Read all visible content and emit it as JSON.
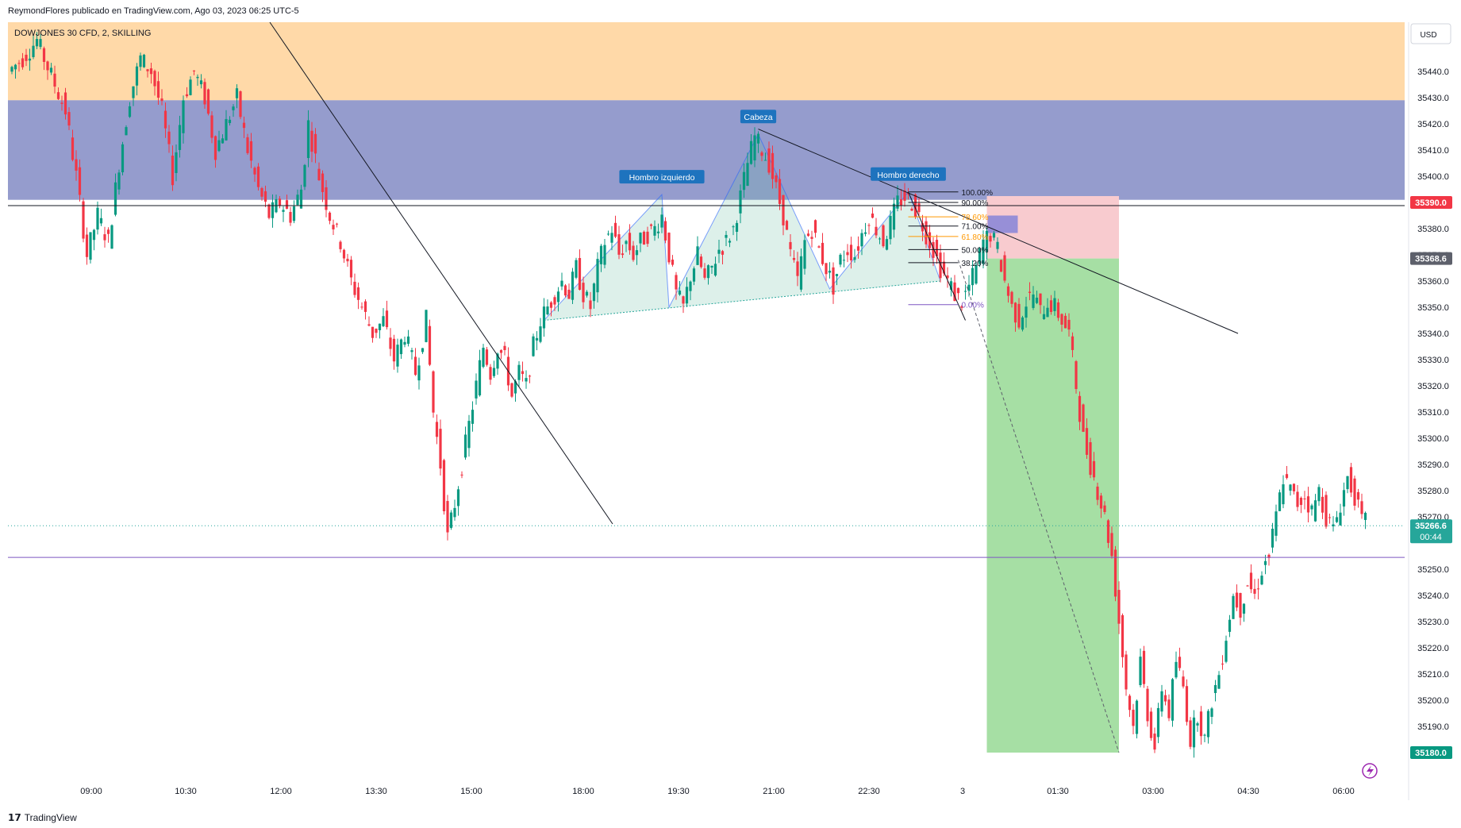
{
  "header": {
    "publish_line": "ReymondFlores publicado en TradingView.com, Ago 03, 2023 06:25 UTC-5"
  },
  "footer": {
    "brand": "TradingView",
    "brand_icon": "tradingview-logo-icon"
  },
  "chart_data": {
    "type": "candlestick",
    "title": "DOWJONES 30 CFD, 2, SKILLING",
    "currency": "USD",
    "grid": false,
    "y_axis": {
      "range": [
        35160,
        35450
      ],
      "ticks": [
        35440.0,
        35430.0,
        35420.0,
        35410.0,
        35400.0,
        35380.0,
        35370.0,
        35360.0,
        35350.0,
        35340.0,
        35330.0,
        35320.0,
        35310.0,
        35300.0,
        35290.0,
        35280.0,
        35270.0,
        35250.0,
        35240.0,
        35230.0,
        35220.0,
        35210.0,
        35200.0,
        35190.0
      ]
    },
    "x_axis": {
      "ticks": [
        "09:00",
        "10:30",
        "12:00",
        "13:30",
        "15:00",
        "18:00",
        "19:30",
        "21:00",
        "22:30",
        "3",
        "01:30",
        "03:00",
        "04:30",
        "06:00"
      ]
    },
    "price_labels": [
      {
        "value": "35390.0",
        "color": "#f23645"
      },
      {
        "value": "35368.6",
        "color": "#5d606b"
      },
      {
        "value": "35266.6",
        "sub": "00:44",
        "color": "#26a69a"
      },
      {
        "value": "35180.0",
        "color": "#089981"
      }
    ],
    "zones": [
      {
        "from": 35429,
        "to": 35460,
        "color": "#ffd9a8"
      },
      {
        "from": 35391,
        "to": 35429,
        "color": "#959ccd"
      }
    ],
    "horizontal_lines": [
      {
        "value": 35388.8,
        "color": "#131722"
      },
      {
        "value": 35254.5,
        "color": "#7e57c2"
      },
      {
        "value": 35266.6,
        "color": "#26a69a",
        "dashed": true
      }
    ],
    "pattern_labels": [
      "Hombro izquierdo",
      "Cabeza",
      "Hombro derecho"
    ],
    "fibonacci": [
      {
        "level": "100.00%",
        "value": 35394,
        "color": "#131722"
      },
      {
        "level": "90.00%",
        "value": 35390,
        "color": "#131722"
      },
      {
        "level": "78.60%",
        "value": 35384.5,
        "color": "#ff9800"
      },
      {
        "level": "71.00%",
        "value": 35381,
        "color": "#131722"
      },
      {
        "level": "61.80%",
        "value": 35377,
        "color": "#ff9800"
      },
      {
        "level": "50.00%",
        "value": 35372,
        "color": "#131722"
      },
      {
        "level": "38.20%",
        "value": 35367,
        "color": "#131722"
      },
      {
        "level": "0.00%",
        "value": 35351,
        "color": "#7e57c2"
      }
    ],
    "position": {
      "entry": 35368.6,
      "stop": 35390.0,
      "target": 35180.0
    },
    "price_path": [
      [
        0,
        35440
      ],
      [
        4,
        35445
      ],
      [
        8,
        35452
      ],
      [
        10,
        35445
      ],
      [
        13,
        35435
      ],
      [
        16,
        35425
      ],
      [
        19,
        35400
      ],
      [
        22,
        35370
      ],
      [
        25,
        35385
      ],
      [
        28,
        35375
      ],
      [
        31,
        35405
      ],
      [
        34,
        35430
      ],
      [
        37,
        35445
      ],
      [
        40,
        35440
      ],
      [
        43,
        35425
      ],
      [
        46,
        35400
      ],
      [
        49,
        35430
      ],
      [
        52,
        35440
      ],
      [
        55,
        35430
      ],
      [
        58,
        35410
      ],
      [
        61,
        35420
      ],
      [
        64,
        35430
      ],
      [
        67,
        35410
      ],
      [
        70,
        35395
      ],
      [
        73,
        35385
      ],
      [
        76,
        35390
      ],
      [
        79,
        35385
      ],
      [
        82,
        35395
      ],
      [
        84,
        35420
      ],
      [
        87,
        35400
      ],
      [
        90,
        35385
      ],
      [
        93,
        35375
      ],
      [
        96,
        35360
      ],
      [
        99,
        35350
      ],
      [
        102,
        35340
      ],
      [
        105,
        35345
      ],
      [
        108,
        35330
      ],
      [
        111,
        35340
      ],
      [
        114,
        35325
      ],
      [
        117,
        35345
      ],
      [
        119,
        35310
      ],
      [
        121,
        35290
      ],
      [
        123,
        35262
      ],
      [
        125,
        35275
      ],
      [
        127,
        35290
      ],
      [
        129,
        35305
      ],
      [
        131,
        35320
      ],
      [
        133,
        35335
      ],
      [
        135,
        35325
      ],
      [
        137,
        35335
      ],
      [
        139,
        35330
      ],
      [
        141,
        35316
      ],
      [
        143,
        35325
      ],
      [
        145,
        35320
      ],
      [
        147,
        35335
      ],
      [
        149,
        35345
      ],
      [
        151,
        35350
      ],
      [
        153,
        35355
      ],
      [
        155,
        35360
      ],
      [
        157,
        35355
      ],
      [
        159,
        35365
      ],
      [
        161,
        35355
      ],
      [
        163,
        35350
      ],
      [
        165,
        35365
      ],
      [
        167,
        35375
      ],
      [
        169,
        35380
      ],
      [
        171,
        35370
      ],
      [
        173,
        35375
      ],
      [
        175,
        35370
      ],
      [
        177,
        35375
      ],
      [
        179,
        35378
      ],
      [
        181,
        35380
      ],
      [
        183,
        35385
      ],
      [
        185,
        35370
      ],
      [
        187,
        35355
      ],
      [
        189,
        35350
      ],
      [
        191,
        35362
      ],
      [
        193,
        35370
      ],
      [
        195,
        35360
      ],
      [
        197,
        35365
      ],
      [
        199,
        35372
      ],
      [
        201,
        35375
      ],
      [
        203,
        35380
      ],
      [
        205,
        35392
      ],
      [
        207,
        35405
      ],
      [
        209,
        35415
      ],
      [
        211,
        35410
      ],
      [
        213,
        35405
      ],
      [
        215,
        35395
      ],
      [
        217,
        35385
      ],
      [
        219,
        35370
      ],
      [
        221,
        35360
      ],
      [
        223,
        35375
      ],
      [
        225,
        35380
      ],
      [
        227,
        35372
      ],
      [
        229,
        35365
      ],
      [
        231,
        35358
      ],
      [
        233,
        35368
      ],
      [
        235,
        35372
      ],
      [
        237,
        35370
      ],
      [
        239,
        35378
      ],
      [
        241,
        35385
      ],
      [
        243,
        35380
      ],
      [
        245,
        35375
      ],
      [
        247,
        35382
      ],
      [
        249,
        35390
      ],
      [
        251,
        35392
      ],
      [
        253,
        35390
      ],
      [
        255,
        35385
      ],
      [
        257,
        35378
      ],
      [
        259,
        35372
      ],
      [
        261,
        35365
      ],
      [
        263,
        35360
      ],
      [
        265,
        35355
      ],
      [
        267,
        35352
      ],
      [
        269,
        35358
      ],
      [
        271,
        35365
      ],
      [
        273,
        35375
      ],
      [
        275,
        35378
      ],
      [
        277,
        35372
      ],
      [
        279,
        35360
      ],
      [
        281,
        35350
      ],
      [
        283,
        35345
      ],
      [
        285,
        35352
      ],
      [
        287,
        35355
      ],
      [
        289,
        35348
      ],
      [
        291,
        35352
      ],
      [
        293,
        35350
      ],
      [
        295,
        35345
      ],
      [
        297,
        35340
      ],
      [
        299,
        35320
      ],
      [
        301,
        35300
      ],
      [
        303,
        35290
      ],
      [
        305,
        35280
      ],
      [
        307,
        35270
      ],
      [
        309,
        35255
      ],
      [
        311,
        35230
      ],
      [
        313,
        35205
      ],
      [
        315,
        35190
      ],
      [
        317,
        35215
      ],
      [
        319,
        35195
      ],
      [
        321,
        35182
      ],
      [
        323,
        35205
      ],
      [
        325,
        35195
      ],
      [
        327,
        35215
      ],
      [
        329,
        35205
      ],
      [
        331,
        35185
      ],
      [
        333,
        35195
      ],
      [
        335,
        35185
      ],
      [
        337,
        35200
      ],
      [
        339,
        35210
      ],
      [
        341,
        35225
      ],
      [
        343,
        35240
      ],
      [
        345,
        35235
      ],
      [
        347,
        35245
      ],
      [
        349,
        35240
      ],
      [
        351,
        35250
      ],
      [
        353,
        35255
      ],
      [
        355,
        35270
      ],
      [
        357,
        35285
      ],
      [
        359,
        35280
      ],
      [
        361,
        35275
      ],
      [
        363,
        35278
      ],
      [
        365,
        35272
      ],
      [
        367,
        35280
      ],
      [
        369,
        35270
      ],
      [
        371,
        35265
      ],
      [
        373,
        35275
      ],
      [
        375,
        35285
      ],
      [
        377,
        35278
      ],
      [
        379,
        35268
      ]
    ],
    "candle_count": 380
  }
}
